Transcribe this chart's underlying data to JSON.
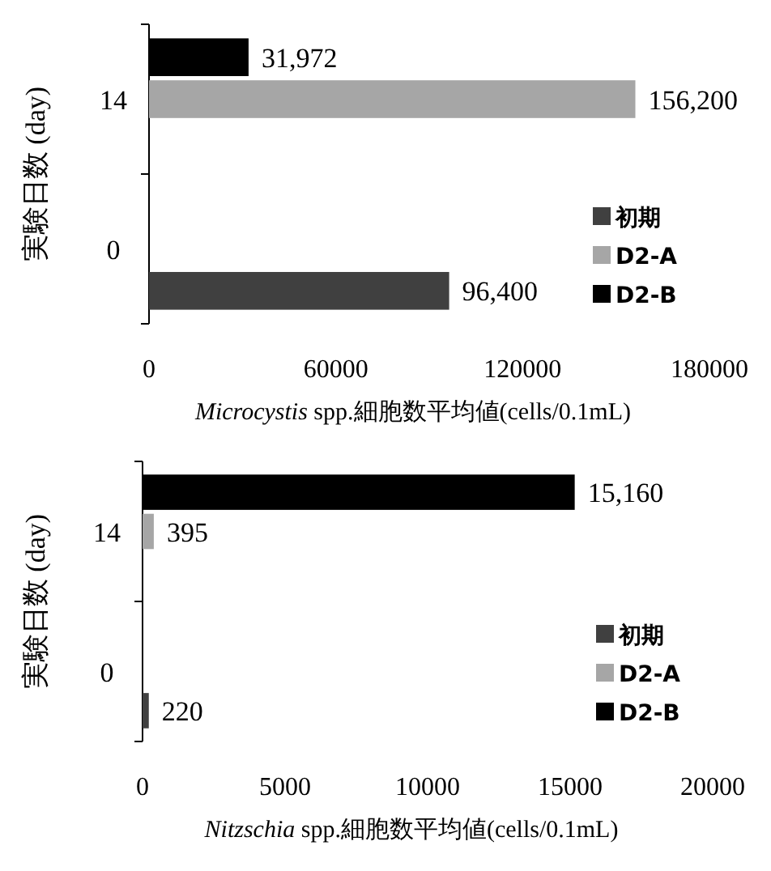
{
  "chart_data": [
    {
      "type": "bar",
      "orientation": "horizontal",
      "categories": [
        "14",
        "0"
      ],
      "xlabel": "Microcystis spp.細胞数平均値(cells/0.1mL)",
      "ylabel": "実験日数 (day)",
      "xlim": [
        0,
        180000
      ],
      "xticks": [
        0,
        60000,
        120000,
        180000
      ],
      "legend": "bottom right",
      "grid": false,
      "series": [
        {
          "name": "初期",
          "color": "#404040",
          "values": [
            null,
            96400
          ],
          "value_labels": [
            null,
            "96,400"
          ]
        },
        {
          "name": "D2-A",
          "color": "#a6a6a6",
          "values": [
            156200,
            null
          ],
          "value_labels": [
            "156,200",
            null
          ]
        },
        {
          "name": "D2-B",
          "color": "#000000",
          "values": [
            31972,
            null
          ],
          "value_labels": [
            "31,972",
            null
          ]
        }
      ]
    },
    {
      "type": "bar",
      "orientation": "horizontal",
      "categories": [
        "14",
        "0"
      ],
      "xlabel": "Nitzschia spp.細胞数平均値(cells/0.1mL)",
      "ylabel": "実験日数 (day)",
      "xlim": [
        0,
        20000
      ],
      "xticks": [
        0,
        5000,
        10000,
        15000,
        20000
      ],
      "legend": "bottom right",
      "grid": false,
      "series": [
        {
          "name": "初期",
          "color": "#404040",
          "values": [
            null,
            220
          ],
          "value_labels": [
            null,
            "220"
          ]
        },
        {
          "name": "D2-A",
          "color": "#a6a6a6",
          "values": [
            395,
            null
          ],
          "value_labels": [
            "395",
            null
          ]
        },
        {
          "name": "D2-B",
          "color": "#000000",
          "values": [
            15160,
            null
          ],
          "value_labels": [
            "15,160",
            null
          ]
        }
      ]
    }
  ]
}
